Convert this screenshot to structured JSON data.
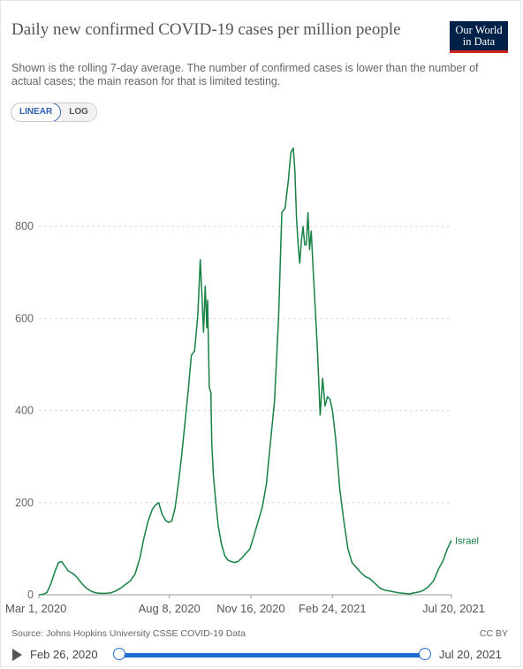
{
  "header": {
    "title": "Daily new confirmed COVID-19 cases per million people",
    "subtitle": "Shown is the rolling 7-day average. The number of confirmed cases is lower than the number of actual cases; the main reason for that is limited testing.",
    "logo_line1": "Our World",
    "logo_line2": "in Data"
  },
  "controls": {
    "linear_label": "LINEAR",
    "log_label": "LOG",
    "selected": "LINEAR"
  },
  "colors": {
    "series": "#168143",
    "accent": "#2d5fb3",
    "logo_bg": "#002147",
    "logo_bar": "#ce261e",
    "timeline": "#1f6fd1"
  },
  "chart_data": {
    "type": "line",
    "title": "Daily new confirmed COVID-19 cases per million people",
    "xlabel": "",
    "ylabel": "",
    "ylim": [
      0,
      1000
    ],
    "yticks": [
      0,
      200,
      400,
      600,
      800
    ],
    "xlim": [
      "2020-03-01",
      "2021-07-20"
    ],
    "xticks": [
      "Mar 1, 2020",
      "Aug 8, 2020",
      "Nov 16, 2020",
      "Feb 24, 2021",
      "Jul 20, 2021"
    ],
    "xtick_dates": [
      "2020-03-01",
      "2020-08-08",
      "2020-11-16",
      "2021-02-24",
      "2021-07-20"
    ],
    "grid": "horizontal dashed",
    "series": [
      {
        "name": "Israel",
        "x": [
          "2020-03-01",
          "2020-03-06",
          "2020-03-11",
          "2020-03-16",
          "2020-03-21",
          "2020-03-25",
          "2020-03-29",
          "2020-04-02",
          "2020-04-06",
          "2020-04-10",
          "2020-04-14",
          "2020-04-18",
          "2020-04-22",
          "2020-04-26",
          "2020-04-30",
          "2020-05-05",
          "2020-05-10",
          "2020-05-16",
          "2020-05-22",
          "2020-05-28",
          "2020-06-03",
          "2020-06-09",
          "2020-06-15",
          "2020-06-21",
          "2020-06-27",
          "2020-07-03",
          "2020-07-08",
          "2020-07-13",
          "2020-07-18",
          "2020-07-22",
          "2020-07-26",
          "2020-07-30",
          "2020-08-03",
          "2020-08-07",
          "2020-08-11",
          "2020-08-15",
          "2020-08-19",
          "2020-08-23",
          "2020-08-27",
          "2020-08-31",
          "2020-09-04",
          "2020-09-08",
          "2020-09-12",
          "2020-09-15",
          "2020-09-17",
          "2020-09-19",
          "2020-09-21",
          "2020-09-23",
          "2020-09-24",
          "2020-09-26",
          "2020-09-28",
          "2020-09-29",
          "2020-10-01",
          "2020-10-04",
          "2020-10-07",
          "2020-10-11",
          "2020-10-15",
          "2020-10-19",
          "2020-10-23",
          "2020-10-27",
          "2020-10-31",
          "2020-11-05",
          "2020-11-10",
          "2020-11-15",
          "2020-11-20",
          "2020-11-25",
          "2020-11-30",
          "2020-12-05",
          "2020-12-10",
          "2020-12-15",
          "2020-12-20",
          "2020-12-24",
          "2020-12-28",
          "2021-01-01",
          "2021-01-04",
          "2021-01-07",
          "2021-01-09",
          "2021-01-11",
          "2021-01-13",
          "2021-01-15",
          "2021-01-17",
          "2021-01-19",
          "2021-01-21",
          "2021-01-23",
          "2021-01-25",
          "2021-01-27",
          "2021-01-29",
          "2021-01-31",
          "2021-02-03",
          "2021-02-06",
          "2021-02-09",
          "2021-02-12",
          "2021-02-15",
          "2021-02-18",
          "2021-02-21",
          "2021-02-24",
          "2021-02-28",
          "2021-03-05",
          "2021-03-10",
          "2021-03-15",
          "2021-03-20",
          "2021-03-25",
          "2021-03-30",
          "2021-04-05",
          "2021-04-11",
          "2021-04-17",
          "2021-04-23",
          "2021-04-29",
          "2021-05-05",
          "2021-05-11",
          "2021-05-17",
          "2021-05-23",
          "2021-05-29",
          "2021-06-04",
          "2021-06-10",
          "2021-06-16",
          "2021-06-22",
          "2021-06-28",
          "2021-07-04",
          "2021-07-10",
          "2021-07-15",
          "2021-07-20"
        ],
        "y": [
          0,
          1,
          5,
          25,
          52,
          70,
          72,
          62,
          52,
          48,
          43,
          35,
          26,
          18,
          12,
          7,
          4,
          3,
          3,
          4,
          8,
          14,
          22,
          30,
          45,
          80,
          125,
          160,
          185,
          195,
          200,
          175,
          162,
          157,
          160,
          188,
          240,
          300,
          370,
          440,
          520,
          530,
          610,
          728,
          650,
          570,
          670,
          580,
          640,
          450,
          440,
          330,
          260,
          200,
          150,
          110,
          85,
          75,
          72,
          70,
          72,
          80,
          90,
          100,
          130,
          160,
          190,
          240,
          330,
          420,
          600,
          830,
          840,
          900,
          960,
          970,
          920,
          820,
          760,
          720,
          770,
          800,
          760,
          760,
          830,
          750,
          790,
          720,
          620,
          520,
          390,
          470,
          410,
          430,
          425,
          400,
          340,
          230,
          160,
          100,
          70,
          60,
          50,
          40,
          35,
          25,
          15,
          10,
          8,
          6,
          4,
          3,
          2,
          4,
          6,
          10,
          18,
          30,
          55,
          75,
          100,
          118
        ]
      }
    ],
    "series_label": "Israel"
  },
  "footer": {
    "source": "Source: Johns Hopkins University CSSE COVID-19 Data",
    "license": "CC BY"
  },
  "timeline": {
    "start_label": "Feb 26, 2020",
    "end_label": "Jul 20, 2021"
  }
}
